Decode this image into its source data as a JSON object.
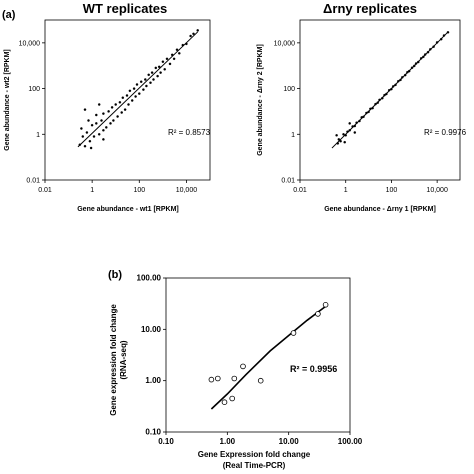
{
  "panel_labels": {
    "a": "(a)",
    "b": "(b)"
  },
  "chart_data": [
    {
      "type": "scatter",
      "title": "WT replicates",
      "xlabel": "Gene abundance - wt1 [RPKM]",
      "ylabel": "Gene abundance - wt2 [RPKM]",
      "scale": "log",
      "xlim": [
        0.01,
        100000
      ],
      "ylim": [
        0.01,
        100000
      ],
      "xticks": [
        "0.01",
        "1",
        "100",
        "10,000"
      ],
      "yticks": [
        "0.01",
        "1",
        "100",
        "10,000"
      ],
      "annotation": "R² = 0.8573",
      "marker_color": "#000000",
      "points_note": "dense cloud of genes along the diagonal with wider scatter at low abundance",
      "points": [
        [
          0.4,
          0.8
        ],
        [
          0.3,
          0.35
        ],
        [
          0.5,
          0.3
        ],
        [
          0.6,
          1.2
        ],
        [
          0.8,
          0.5
        ],
        [
          1,
          2.5
        ],
        [
          1.2,
          0.8
        ],
        [
          1.5,
          3
        ],
        [
          2,
          1
        ],
        [
          2.5,
          4
        ],
        [
          3,
          1.5
        ],
        [
          3,
          8
        ],
        [
          4,
          2
        ],
        [
          5,
          10
        ],
        [
          6,
          3
        ],
        [
          7,
          15
        ],
        [
          8,
          4
        ],
        [
          10,
          20
        ],
        [
          12,
          6
        ],
        [
          15,
          25
        ],
        [
          18,
          9
        ],
        [
          20,
          40
        ],
        [
          25,
          12
        ],
        [
          30,
          50
        ],
        [
          35,
          20
        ],
        [
          40,
          80
        ],
        [
          50,
          30
        ],
        [
          60,
          100
        ],
        [
          70,
          45
        ],
        [
          80,
          150
        ],
        [
          100,
          60
        ],
        [
          120,
          200
        ],
        [
          150,
          90
        ],
        [
          180,
          250
        ],
        [
          200,
          130
        ],
        [
          250,
          400
        ],
        [
          300,
          180
        ],
        [
          350,
          500
        ],
        [
          400,
          250
        ],
        [
          500,
          800
        ],
        [
          600,
          350
        ],
        [
          700,
          900
        ],
        [
          800,
          500
        ],
        [
          1000,
          1500
        ],
        [
          1200,
          700
        ],
        [
          1500,
          2000
        ],
        [
          2000,
          1200
        ],
        [
          2500,
          3000
        ],
        [
          3000,
          2000
        ],
        [
          4000,
          5000
        ],
        [
          5000,
          3500
        ],
        [
          7000,
          8000
        ],
        [
          10000,
          9000
        ],
        [
          15000,
          20000
        ],
        [
          20000,
          25000
        ],
        [
          30000,
          35000
        ],
        [
          0.7,
          4
        ],
        [
          1.5,
          7
        ],
        [
          0.5,
          12
        ],
        [
          3,
          0.6
        ],
        [
          0.35,
          1.8
        ],
        [
          2,
          20
        ],
        [
          0.9,
          0.25
        ]
      ],
      "fit_line": [
        [
          0.25,
          0.28
        ],
        [
          30000,
          30000
        ]
      ]
    },
    {
      "type": "scatter",
      "title": "Δrny replicates",
      "xlabel": "Gene abundance - Δrny 1 [RPKM]",
      "ylabel": "Gene abundance - Δrny 2 [RPKM]",
      "scale": "log",
      "xlim": [
        0.01,
        100000
      ],
      "ylim": [
        0.01,
        100000
      ],
      "xticks": [
        "0.01",
        "1",
        "100",
        "10,000"
      ],
      "yticks": [
        "0.01",
        "1",
        "100",
        "10,000"
      ],
      "annotation": "R² = 0.9976",
      "marker_color": "#000000",
      "points_note": "tight band of genes along the diagonal",
      "points": [
        [
          0.5,
          0.6
        ],
        [
          0.6,
          0.5
        ],
        [
          0.8,
          1
        ],
        [
          1,
          0.9
        ],
        [
          1.2,
          1.3
        ],
        [
          1.5,
          1.5
        ],
        [
          2,
          2.2
        ],
        [
          2.5,
          2.3
        ],
        [
          3,
          3.2
        ],
        [
          4,
          3.8
        ],
        [
          5,
          5.5
        ],
        [
          6,
          5.8
        ],
        [
          8,
          8.5
        ],
        [
          10,
          9.5
        ],
        [
          12,
          13
        ],
        [
          15,
          14
        ],
        [
          20,
          21
        ],
        [
          25,
          24
        ],
        [
          30,
          32
        ],
        [
          40,
          38
        ],
        [
          50,
          52
        ],
        [
          60,
          58
        ],
        [
          80,
          85
        ],
        [
          100,
          95
        ],
        [
          120,
          125
        ],
        [
          150,
          145
        ],
        [
          200,
          210
        ],
        [
          250,
          240
        ],
        [
          300,
          310
        ],
        [
          400,
          390
        ],
        [
          500,
          520
        ],
        [
          600,
          580
        ],
        [
          800,
          820
        ],
        [
          1000,
          980
        ],
        [
          1200,
          1250
        ],
        [
          1500,
          1450
        ],
        [
          2000,
          2100
        ],
        [
          2500,
          2450
        ],
        [
          3000,
          3100
        ],
        [
          4000,
          3900
        ],
        [
          5000,
          5200
        ],
        [
          7000,
          6800
        ],
        [
          10000,
          10500
        ],
        [
          15000,
          14500
        ],
        [
          20000,
          21000
        ],
        [
          30000,
          29000
        ],
        [
          0.4,
          0.9
        ],
        [
          0.9,
          0.45
        ],
        [
          1.5,
          3
        ],
        [
          2.5,
          1.2
        ],
        [
          0.45,
          0.4
        ]
      ],
      "fit_line": [
        [
          0.25,
          0.25
        ],
        [
          30000,
          30000
        ]
      ]
    },
    {
      "type": "scatter",
      "xlabel_line1": "Gene Expression fold change",
      "xlabel_line2": "(Real Time-PCR)",
      "ylabel_line1": "Gene expression fold change",
      "ylabel_line2": "(RNA-seq)",
      "scale": "log",
      "xlim": [
        0.1,
        100
      ],
      "ylim": [
        0.1,
        100
      ],
      "xticks": [
        "0.10",
        "1.00",
        "10.00",
        "100.00"
      ],
      "yticks": [
        "0.10",
        "1.00",
        "10.00",
        "100.00"
      ],
      "annotation": "R² = 0.9956",
      "marker": "open-circle",
      "points": [
        [
          0.55,
          1.05
        ],
        [
          0.7,
          1.1
        ],
        [
          0.9,
          0.38
        ],
        [
          1.2,
          0.45
        ],
        [
          1.3,
          1.1
        ],
        [
          1.8,
          1.9
        ],
        [
          3.5,
          1.0
        ],
        [
          12,
          8.5
        ],
        [
          30,
          20
        ],
        [
          40,
          30
        ]
      ],
      "fit_line": [
        [
          0.55,
          0.28
        ],
        [
          1,
          0.55
        ],
        [
          2,
          1.3
        ],
        [
          5,
          3.8
        ],
        [
          10,
          7.6
        ],
        [
          20,
          15
        ],
        [
          40,
          28
        ]
      ]
    }
  ]
}
